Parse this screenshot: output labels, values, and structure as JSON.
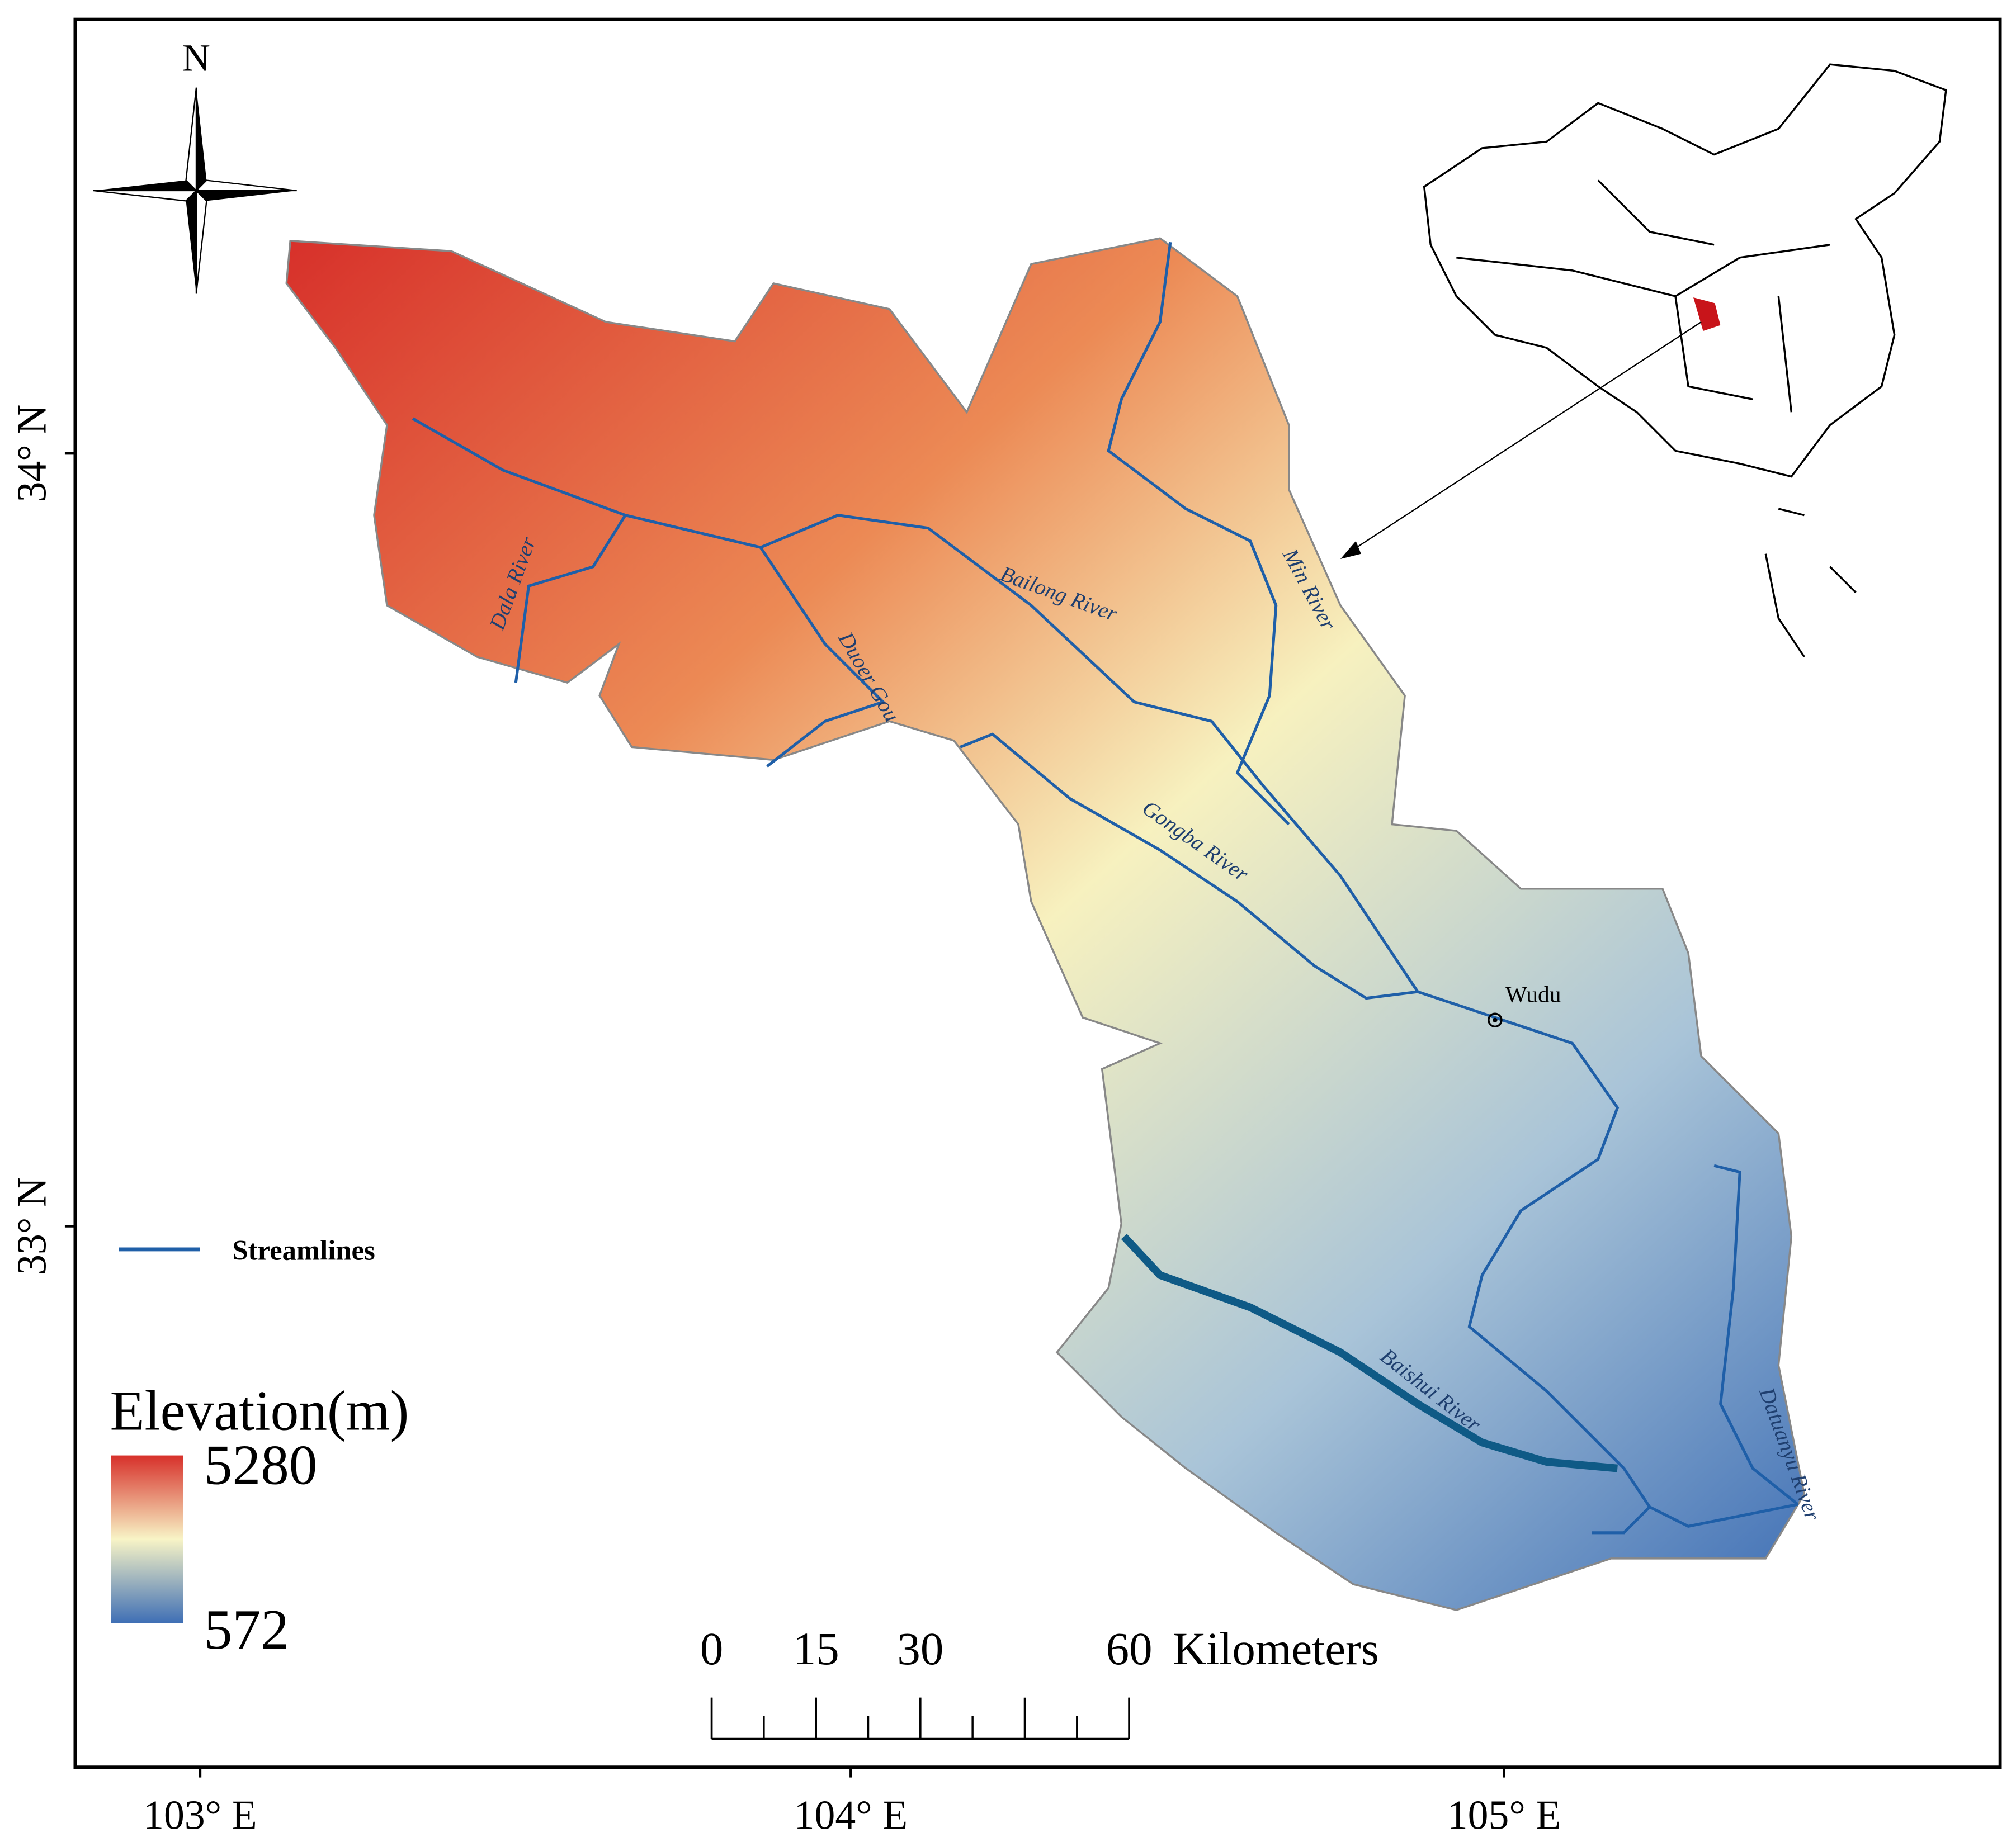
{
  "north_label": "N",
  "latitudes": [
    "34° N",
    "33° N"
  ],
  "longitudes": [
    "103° E",
    "104° E",
    "105° E"
  ],
  "rivers": [
    "Dala River",
    "Duoer Gou",
    "Bailong River",
    "Min River",
    "Gongba River",
    "Baishui River",
    "Datuanyu River"
  ],
  "city": "Wudu",
  "legend": {
    "streamlines": "Streamlines"
  },
  "elevation": {
    "title": "Elevation(m)",
    "max": 5280,
    "min": 572
  },
  "scale_bar": {
    "ticks": [
      0,
      15,
      30,
      60
    ],
    "unit": "Kilometers"
  }
}
